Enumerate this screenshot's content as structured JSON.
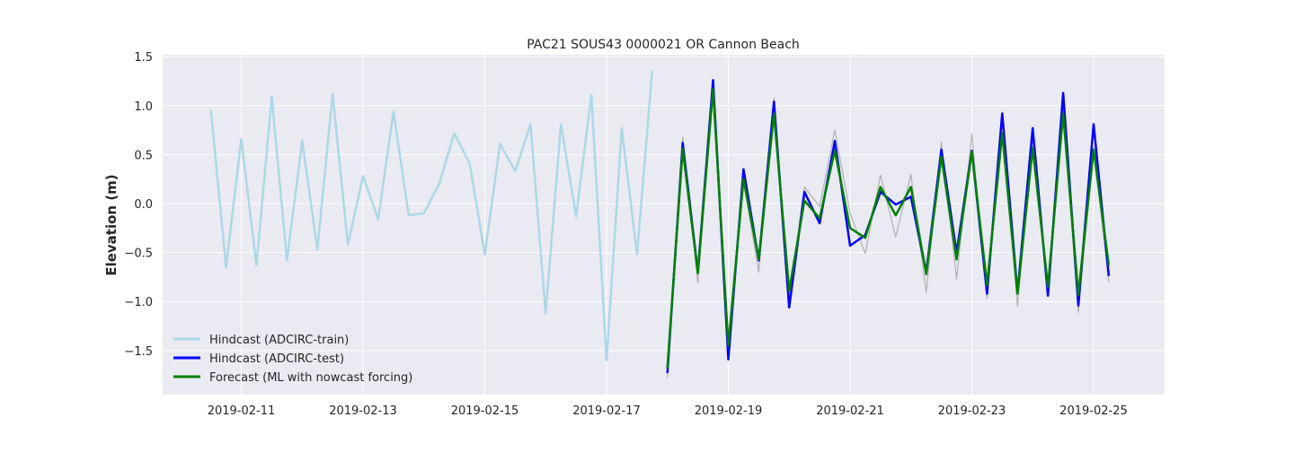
{
  "chart_data": {
    "type": "line",
    "title": "PAC21 SOUS43 0000021 OR Cannon Beach",
    "xlabel": "",
    "ylabel": "Elevation (m)",
    "xlim": [
      "2019-02-09T17:00",
      "2019-02-26T04:00"
    ],
    "ylim": [
      -1.95,
      1.52
    ],
    "xtick_labels": [
      "2019-02-11",
      "2019-02-13",
      "2019-02-15",
      "2019-02-17",
      "2019-02-19",
      "2019-02-21",
      "2019-02-23",
      "2019-02-25"
    ],
    "ytick_labels": [
      "1.5",
      "1.0",
      "0.5",
      "0.0",
      "−0.5",
      "−1.0",
      "−1.5"
    ],
    "ytick_values": [
      1.5,
      1.0,
      0.5,
      0.0,
      -0.5,
      -1.0,
      -1.5
    ],
    "grid": true,
    "legend_position": "lower-left",
    "legend": [
      {
        "name": "Hindcast (ADCIRC-train)",
        "color": "#add8e6"
      },
      {
        "name": "Hindcast (ADCIRC-test)",
        "color": "#0000ff"
      },
      {
        "name": "Forecast (ML with nowcast forcing)",
        "color": "#008000"
      }
    ],
    "series": [
      {
        "name": "Hindcast (ADCIRC-train)",
        "color": "#add8e6",
        "x": [
          "2019-02-10T12:00",
          "2019-02-10T18:00",
          "2019-02-11T00:00",
          "2019-02-11T06:00",
          "2019-02-11T12:00",
          "2019-02-11T18:00",
          "2019-02-12T00:00",
          "2019-02-12T06:00",
          "2019-02-12T12:00",
          "2019-02-12T18:00",
          "2019-02-13T00:00",
          "2019-02-13T06:00",
          "2019-02-13T12:00",
          "2019-02-13T18:00",
          "2019-02-14T00:00",
          "2019-02-14T06:00",
          "2019-02-14T12:00",
          "2019-02-14T18:00",
          "2019-02-15T00:00",
          "2019-02-15T06:00",
          "2019-02-15T12:00",
          "2019-02-15T18:00",
          "2019-02-16T00:00",
          "2019-02-16T06:00",
          "2019-02-16T12:00",
          "2019-02-16T18:00",
          "2019-02-17T00:00",
          "2019-02-17T06:00",
          "2019-02-17T12:00",
          "2019-02-17T18:00"
        ],
        "y": [
          0.96,
          -0.65,
          0.66,
          -0.63,
          1.09,
          -0.58,
          0.64,
          -0.47,
          1.12,
          -0.42,
          0.28,
          -0.16,
          0.94,
          -0.12,
          -0.1,
          0.2,
          0.72,
          0.41,
          -0.52,
          0.61,
          0.33,
          0.81,
          -1.12,
          0.81,
          -0.13,
          1.11,
          -1.6,
          0.77,
          -0.52,
          1.36
        ]
      },
      {
        "name": "",
        "color": "#9e9e9e",
        "x": [
          "2019-02-18T00:00",
          "2019-02-18T06:00",
          "2019-02-18T12:00",
          "2019-02-18T18:00",
          "2019-02-19T00:00",
          "2019-02-19T06:00",
          "2019-02-19T12:00",
          "2019-02-19T18:00",
          "2019-02-20T00:00",
          "2019-02-20T06:00",
          "2019-02-20T12:00",
          "2019-02-20T18:00",
          "2019-02-21T00:00",
          "2019-02-21T06:00",
          "2019-02-21T12:00",
          "2019-02-21T18:00",
          "2019-02-22T00:00",
          "2019-02-22T06:00",
          "2019-02-22T12:00",
          "2019-02-22T18:00",
          "2019-02-23T00:00",
          "2019-02-23T06:00",
          "2019-02-23T12:00",
          "2019-02-23T18:00",
          "2019-02-24T00:00",
          "2019-02-24T06:00",
          "2019-02-24T12:00",
          "2019-02-24T18:00",
          "2019-02-25T00:00",
          "2019-02-25T06:00"
        ],
        "y": [
          -1.78,
          0.68,
          -0.81,
          1.18,
          -1.45,
          0.22,
          -0.7,
          1.08,
          -0.97,
          0.17,
          -0.03,
          0.75,
          -0.1,
          -0.51,
          0.29,
          -0.34,
          0.3,
          -0.91,
          0.63,
          -0.77,
          0.71,
          -0.97,
          0.82,
          -1.05,
          0.64,
          -0.83,
          0.95,
          -1.11,
          0.57,
          -0.8
        ]
      },
      {
        "name": "Hindcast (ADCIRC-test)",
        "color": "#0000ff",
        "x": [
          "2019-02-18T00:00",
          "2019-02-18T06:00",
          "2019-02-18T12:00",
          "2019-02-18T18:00",
          "2019-02-19T00:00",
          "2019-02-19T06:00",
          "2019-02-19T12:00",
          "2019-02-19T18:00",
          "2019-02-20T00:00",
          "2019-02-20T06:00",
          "2019-02-20T12:00",
          "2019-02-20T18:00",
          "2019-02-21T00:00",
          "2019-02-21T06:00",
          "2019-02-21T12:00",
          "2019-02-21T18:00",
          "2019-02-22T00:00",
          "2019-02-22T06:00",
          "2019-02-22T12:00",
          "2019-02-22T18:00",
          "2019-02-23T00:00",
          "2019-02-23T06:00",
          "2019-02-23T12:00",
          "2019-02-23T18:00",
          "2019-02-24T00:00",
          "2019-02-24T06:00",
          "2019-02-24T12:00",
          "2019-02-24T18:00",
          "2019-02-25T00:00",
          "2019-02-25T06:00"
        ],
        "y": [
          -1.73,
          0.62,
          -0.7,
          1.26,
          -1.59,
          0.35,
          -0.58,
          1.04,
          -1.06,
          0.12,
          -0.2,
          0.64,
          -0.43,
          -0.32,
          0.12,
          -0.01,
          0.07,
          -0.7,
          0.55,
          -0.5,
          0.54,
          -0.92,
          0.92,
          -0.91,
          0.77,
          -0.94,
          1.13,
          -1.04,
          0.81,
          -0.74
        ]
      },
      {
        "name": "Forecast (ML with nowcast forcing)",
        "color": "#008000",
        "x": [
          "2019-02-18T00:00",
          "2019-02-18T06:00",
          "2019-02-18T12:00",
          "2019-02-18T18:00",
          "2019-02-19T00:00",
          "2019-02-19T06:00",
          "2019-02-19T12:00",
          "2019-02-19T18:00",
          "2019-02-20T00:00",
          "2019-02-20T06:00",
          "2019-02-20T12:00",
          "2019-02-20T18:00",
          "2019-02-21T00:00",
          "2019-02-21T06:00",
          "2019-02-21T12:00",
          "2019-02-21T18:00",
          "2019-02-22T00:00",
          "2019-02-22T06:00",
          "2019-02-22T12:00",
          "2019-02-22T18:00",
          "2019-02-23T00:00",
          "2019-02-23T06:00",
          "2019-02-23T12:00",
          "2019-02-23T18:00",
          "2019-02-24T00:00",
          "2019-02-24T06:00",
          "2019-02-24T12:00",
          "2019-02-24T18:00",
          "2019-02-25T00:00",
          "2019-02-25T06:00"
        ],
        "y": [
          -1.68,
          0.56,
          -0.71,
          1.17,
          -1.45,
          0.25,
          -0.57,
          0.92,
          -0.89,
          0.03,
          -0.15,
          0.54,
          -0.25,
          -0.35,
          0.17,
          -0.12,
          0.17,
          -0.72,
          0.48,
          -0.57,
          0.53,
          -0.83,
          0.72,
          -0.92,
          0.57,
          -0.85,
          0.92,
          -0.93,
          0.55,
          -0.63
        ]
      }
    ]
  }
}
